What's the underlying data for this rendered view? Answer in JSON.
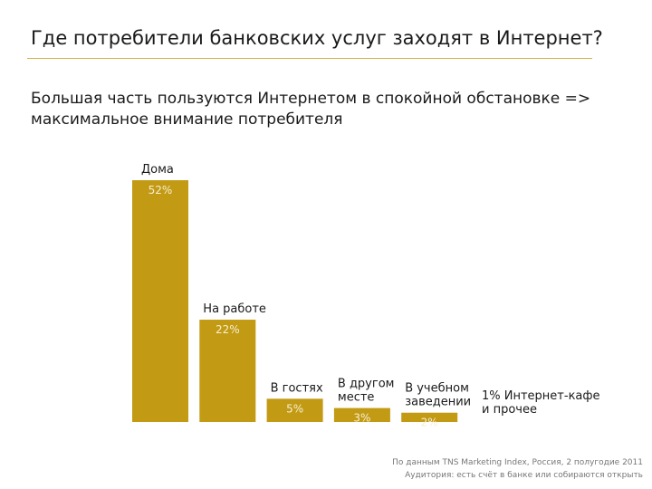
{
  "slide": {
    "title": "Где потребители банковских услуг заходят в Интернет?",
    "subtitle": "Большая часть пользуются Интернетом в спокойной обстановке => максимальное внимание потребителя"
  },
  "chart_data": {
    "type": "bar",
    "categories": [
      "Дома",
      "На работе",
      "В гостях",
      "В другом месте",
      "В учебном заведении",
      "Интернет-кафе и прочее"
    ],
    "category_lines": [
      [
        "Дома"
      ],
      [
        "На работе"
      ],
      [
        "В гостях"
      ],
      [
        "В другом",
        "месте"
      ],
      [
        "В учебном",
        "заведении"
      ],
      [
        "1% Интернет-кафе",
        "и прочее"
      ]
    ],
    "values": [
      52,
      22,
      5,
      3,
      2,
      1
    ],
    "value_labels": [
      "52%",
      "22%",
      "5%",
      "3%",
      "2%",
      ""
    ],
    "ylim": [
      0,
      52
    ],
    "grid": false,
    "legend": "none",
    "colors": {
      "bar": "#c29a14",
      "value_label": "#f7efd2"
    }
  },
  "footnote": {
    "line1": "По данным TNS Marketing Index, Россия, 2 полугодие 2011",
    "line2": "Аудитория: есть счёт в банке или собираются открыть"
  }
}
